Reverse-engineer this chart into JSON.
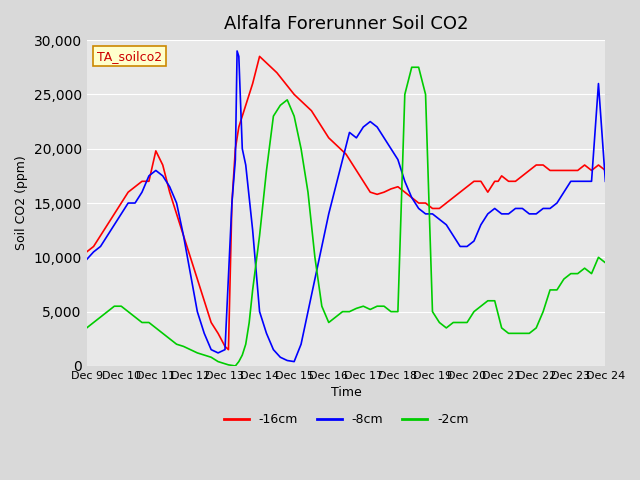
{
  "title": "Alfalfa Forerunner Soil CO2",
  "ylabel": "Soil CO2 (ppm)",
  "xlabel": "Time",
  "ylim": [
    0,
    30000
  ],
  "yticks": [
    0,
    5000,
    10000,
    15000,
    20000,
    25000,
    30000
  ],
  "background_color": "#d9d9d9",
  "plot_bg_color": "#e8e8e8",
  "legend_label": "TA_soilco2",
  "line_colors": {
    "red": "#ff0000",
    "blue": "#0000ff",
    "green": "#00cc00"
  },
  "series_labels": [
    "-16cm",
    "-8cm",
    "-2cm"
  ],
  "xtick_labels": [
    "Dec 9",
    "Dec 10",
    "Dec 11",
    "Dec 12",
    "Dec 13",
    "Dec 14",
    "Dec 15",
    "Dec 16",
    "Dec 17",
    "Dec 18",
    "Dec 19",
    "Dec 20",
    "Dec 21",
    "Dec 22",
    "Dec 23",
    "Dec 24"
  ],
  "red_x": [
    0,
    0.2,
    0.4,
    0.6,
    0.8,
    1.0,
    1.2,
    1.4,
    1.6,
    1.8,
    2.0,
    2.2,
    2.4,
    2.6,
    2.8,
    3.0,
    3.2,
    3.4,
    3.6,
    3.8,
    4.0,
    4.1,
    4.2,
    4.3,
    4.4,
    4.6,
    4.8,
    5.0,
    5.5,
    6.0,
    6.5,
    7.0,
    7.5,
    8.0,
    8.2,
    8.4,
    8.6,
    8.8,
    9.0,
    9.2,
    9.4,
    9.6,
    9.8,
    10.0,
    10.2,
    10.4,
    10.6,
    10.8,
    11.0,
    11.2,
    11.4,
    11.5,
    11.6,
    11.7,
    11.8,
    11.9,
    12.0,
    12.2,
    12.4,
    12.6,
    12.8,
    13.0,
    13.2,
    13.4,
    13.6,
    13.8,
    14.0,
    14.2,
    14.4,
    14.6,
    14.8,
    15.0
  ],
  "red_y": [
    10500,
    11000,
    12000,
    13000,
    14000,
    15000,
    16000,
    16500,
    17000,
    17000,
    19800,
    18500,
    16000,
    14000,
    12000,
    10000,
    8000,
    6000,
    4000,
    3000,
    1800,
    1500,
    15000,
    20000,
    22000,
    24000,
    26000,
    28500,
    27000,
    25000,
    23500,
    21000,
    19500,
    17000,
    16000,
    15800,
    16000,
    16300,
    16500,
    16000,
    15500,
    15000,
    15000,
    14500,
    14500,
    15000,
    15500,
    16000,
    16500,
    17000,
    17000,
    16500,
    16000,
    16500,
    17000,
    17000,
    17500,
    17000,
    17000,
    17500,
    18000,
    18500,
    18500,
    18000,
    18000,
    18000,
    18000,
    18000,
    18500,
    18000,
    18500,
    18000
  ],
  "blue_x": [
    0,
    0.2,
    0.4,
    0.6,
    0.8,
    1.0,
    1.2,
    1.4,
    1.6,
    1.8,
    2.0,
    2.2,
    2.4,
    2.6,
    2.8,
    3.0,
    3.2,
    3.4,
    3.6,
    3.8,
    4.0,
    4.2,
    4.3,
    4.35,
    4.4,
    4.5,
    4.6,
    4.8,
    5.0,
    5.2,
    5.4,
    5.6,
    5.8,
    6.0,
    6.2,
    6.4,
    6.6,
    6.8,
    7.0,
    7.2,
    7.4,
    7.6,
    7.8,
    8.0,
    8.2,
    8.4,
    8.6,
    8.8,
    9.0,
    9.2,
    9.4,
    9.6,
    9.8,
    10.0,
    10.2,
    10.4,
    10.6,
    10.8,
    11.0,
    11.2,
    11.4,
    11.6,
    11.8,
    12.0,
    12.2,
    12.4,
    12.6,
    12.8,
    13.0,
    13.2,
    13.4,
    13.6,
    13.8,
    14.0,
    14.2,
    14.4,
    14.6,
    14.8,
    15.0
  ],
  "blue_y": [
    9800,
    10500,
    11000,
    12000,
    13000,
    14000,
    15000,
    15000,
    16000,
    17500,
    18000,
    17500,
    16500,
    15000,
    12000,
    8500,
    5000,
    3000,
    1500,
    1200,
    1500,
    15000,
    19000,
    29000,
    28500,
    20000,
    18500,
    12500,
    5000,
    3000,
    1500,
    800,
    500,
    400,
    2000,
    5000,
    8000,
    11000,
    14000,
    16500,
    19000,
    21500,
    21000,
    22000,
    22500,
    22000,
    21000,
    20000,
    19000,
    17000,
    15500,
    14500,
    14000,
    14000,
    13500,
    13000,
    12000,
    11000,
    11000,
    11500,
    13000,
    14000,
    14500,
    14000,
    14000,
    14500,
    14500,
    14000,
    14000,
    14500,
    14500,
    15000,
    16000,
    17000,
    17000,
    17000,
    17000,
    26000,
    17000
  ],
  "green_x": [
    0,
    0.2,
    0.4,
    0.6,
    0.8,
    1.0,
    1.2,
    1.4,
    1.6,
    1.8,
    2.0,
    2.2,
    2.4,
    2.6,
    2.8,
    3.0,
    3.2,
    3.4,
    3.6,
    3.8,
    4.0,
    4.1,
    4.2,
    4.3,
    4.4,
    4.5,
    4.6,
    4.7,
    4.8,
    5.0,
    5.2,
    5.4,
    5.6,
    5.8,
    6.0,
    6.2,
    6.4,
    6.6,
    6.8,
    7.0,
    7.2,
    7.4,
    7.6,
    7.8,
    8.0,
    8.2,
    8.4,
    8.6,
    8.8,
    9.0,
    9.2,
    9.4,
    9.6,
    9.8,
    10.0,
    10.2,
    10.4,
    10.6,
    10.8,
    11.0,
    11.2,
    11.4,
    11.6,
    11.8,
    12.0,
    12.2,
    12.4,
    12.6,
    12.8,
    13.0,
    13.2,
    13.4,
    13.6,
    13.8,
    14.0,
    14.2,
    14.4,
    14.6,
    14.8,
    15.0
  ],
  "green_y": [
    3500,
    4000,
    4500,
    5000,
    5500,
    5500,
    5000,
    4500,
    4000,
    4000,
    3500,
    3000,
    2500,
    2000,
    1800,
    1500,
    1200,
    1000,
    800,
    400,
    200,
    100,
    50,
    0,
    400,
    1000,
    2000,
    4000,
    7000,
    12000,
    18000,
    23000,
    24000,
    24500,
    23000,
    20000,
    16000,
    10000,
    5500,
    4000,
    4500,
    5000,
    5000,
    5300,
    5500,
    5200,
    5500,
    5500,
    5000,
    5000,
    25000,
    27500,
    27500,
    25000,
    5000,
    4000,
    3500,
    4000,
    4000,
    4000,
    5000,
    5500,
    6000,
    6000,
    3500,
    3000,
    3000,
    3000,
    3000,
    3500,
    5000,
    7000,
    7000,
    8000,
    8500,
    8500,
    9000,
    8500,
    10000,
    9500
  ]
}
